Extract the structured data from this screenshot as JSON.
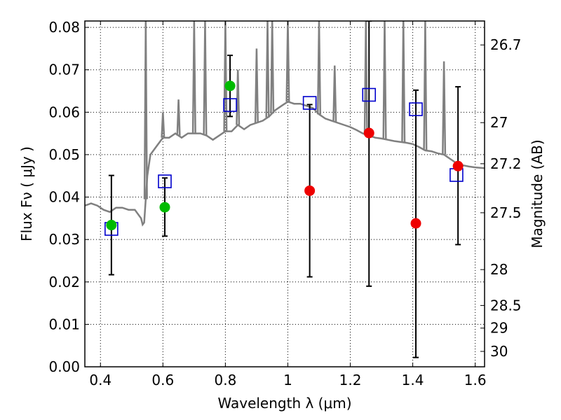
{
  "chart_data": {
    "type": "scatter",
    "xlabel": "Wavelength  λ (μm)",
    "ylabel": "Flux  Fν  ( μJy )",
    "y2label": "Magnitude (AB)",
    "xlim": [
      0.35,
      1.63
    ],
    "ylim": [
      0.0,
      0.0815
    ],
    "grid": true,
    "xticks": [
      {
        "v": 0.4,
        "label": "0.4"
      },
      {
        "v": 0.6,
        "label": "0.6"
      },
      {
        "v": 0.8,
        "label": "0.8"
      },
      {
        "v": 1.0,
        "label": "1"
      },
      {
        "v": 1.2,
        "label": "1.2"
      },
      {
        "v": 1.4,
        "label": "1.4"
      },
      {
        "v": 1.6,
        "label": "1.6"
      }
    ],
    "yticks": [
      {
        "v": 0.0,
        "label": "0.00"
      },
      {
        "v": 0.01,
        "label": "0.01"
      },
      {
        "v": 0.02,
        "label": "0.02"
      },
      {
        "v": 0.03,
        "label": "0.03"
      },
      {
        "v": 0.04,
        "label": "0.04"
      },
      {
        "v": 0.05,
        "label": "0.05"
      },
      {
        "v": 0.06,
        "label": "0.06"
      },
      {
        "v": 0.07,
        "label": "0.07"
      },
      {
        "v": 0.08,
        "label": "0.08"
      }
    ],
    "mag_ticks": [
      {
        "v": 26.7,
        "label": "26.7"
      },
      {
        "v": 27.0,
        "label": "27"
      },
      {
        "v": 27.2,
        "label": "27.2"
      },
      {
        "v": 27.5,
        "label": "27.5"
      },
      {
        "v": 28.0,
        "label": "28"
      },
      {
        "v": 28.5,
        "label": "28.5"
      },
      {
        "v": 29.0,
        "label": "29"
      },
      {
        "v": 30.0,
        "label": "30"
      }
    ],
    "colors": {
      "template": "#808080",
      "model": "#0000cc",
      "detected": "#00bb00",
      "upper": "#ee0000",
      "errorbar": "#000000"
    },
    "template_spectrum": {
      "x": [
        0.35,
        0.37,
        0.39,
        0.41,
        0.43,
        0.45,
        0.47,
        0.49,
        0.51,
        0.53,
        0.535,
        0.54,
        0.55,
        0.56,
        0.58,
        0.6,
        0.62,
        0.64,
        0.66,
        0.68,
        0.7,
        0.72,
        0.74,
        0.76,
        0.78,
        0.8,
        0.82,
        0.84,
        0.86,
        0.88,
        0.9,
        0.92,
        0.94,
        0.96,
        0.98,
        1.0,
        1.02,
        1.04,
        1.06,
        1.08,
        1.1,
        1.12,
        1.14,
        1.16,
        1.18,
        1.2,
        1.22,
        1.24,
        1.26,
        1.28,
        1.3,
        1.32,
        1.34,
        1.36,
        1.38,
        1.4,
        1.42,
        1.44,
        1.46,
        1.48,
        1.5,
        1.52,
        1.54,
        1.56,
        1.58,
        1.6,
        1.63
      ],
      "y": [
        0.038,
        0.0385,
        0.038,
        0.037,
        0.0365,
        0.0375,
        0.0375,
        0.037,
        0.037,
        0.035,
        0.0335,
        0.034,
        0.045,
        0.05,
        0.052,
        0.054,
        0.054,
        0.055,
        0.054,
        0.055,
        0.055,
        0.055,
        0.0545,
        0.0535,
        0.0545,
        0.0555,
        0.0555,
        0.057,
        0.056,
        0.057,
        0.0575,
        0.058,
        0.059,
        0.0605,
        0.0615,
        0.0625,
        0.062,
        0.062,
        0.0615,
        0.061,
        0.0595,
        0.0585,
        0.058,
        0.0575,
        0.057,
        0.0565,
        0.0558,
        0.055,
        0.0545,
        0.054,
        0.0538,
        0.0535,
        0.0532,
        0.053,
        0.0528,
        0.0525,
        0.0518,
        0.051,
        0.0508,
        0.0503,
        0.05,
        0.049,
        0.048,
        0.0475,
        0.0472,
        0.047,
        0.0468
      ]
    },
    "template_lines": [
      {
        "x": 0.545,
        "y": 0.0815
      },
      {
        "x": 0.6,
        "y": 0.06
      },
      {
        "x": 0.65,
        "y": 0.063
      },
      {
        "x": 0.7,
        "y": 0.0815
      },
      {
        "x": 0.735,
        "y": 0.0815
      },
      {
        "x": 0.8,
        "y": 0.0815
      },
      {
        "x": 0.84,
        "y": 0.07
      },
      {
        "x": 0.9,
        "y": 0.075
      },
      {
        "x": 0.935,
        "y": 0.0815
      },
      {
        "x": 0.95,
        "y": 0.0815
      },
      {
        "x": 1.0,
        "y": 0.0815
      },
      {
        "x": 1.1,
        "y": 0.0815
      },
      {
        "x": 1.15,
        "y": 0.071
      },
      {
        "x": 1.25,
        "y": 0.0815
      },
      {
        "x": 1.31,
        "y": 0.0815
      },
      {
        "x": 1.37,
        "y": 0.0815
      },
      {
        "x": 1.44,
        "y": 0.0815
      },
      {
        "x": 1.5,
        "y": 0.072
      }
    ],
    "series": [
      {
        "kind": "model",
        "points": [
          {
            "x": 0.435,
            "y": 0.0325
          },
          {
            "x": 0.606,
            "y": 0.0437
          },
          {
            "x": 0.815,
            "y": 0.0617
          },
          {
            "x": 1.07,
            "y": 0.0622
          },
          {
            "x": 1.26,
            "y": 0.0641
          },
          {
            "x": 1.41,
            "y": 0.0607
          },
          {
            "x": 1.54,
            "y": 0.0452
          }
        ]
      },
      {
        "kind": "detected",
        "points": [
          {
            "x": 0.435,
            "y": 0.0334,
            "lo": 0.0217,
            "hi": 0.0451
          },
          {
            "x": 0.606,
            "y": 0.0376,
            "lo": 0.0308,
            "hi": 0.0445
          },
          {
            "x": 0.815,
            "y": 0.0662,
            "lo": 0.059,
            "hi": 0.0734
          }
        ]
      },
      {
        "kind": "upper",
        "points": [
          {
            "x": 1.07,
            "y": 0.0415,
            "lo": 0.0212,
            "hi": 0.0618
          },
          {
            "x": 1.26,
            "y": 0.0551,
            "lo": 0.019,
            "hi": 0.0815
          },
          {
            "x": 1.41,
            "y": 0.0338,
            "lo": 0.0022,
            "hi": 0.0652
          },
          {
            "x": 1.545,
            "y": 0.0473,
            "lo": 0.0288,
            "hi": 0.066
          }
        ]
      }
    ]
  }
}
